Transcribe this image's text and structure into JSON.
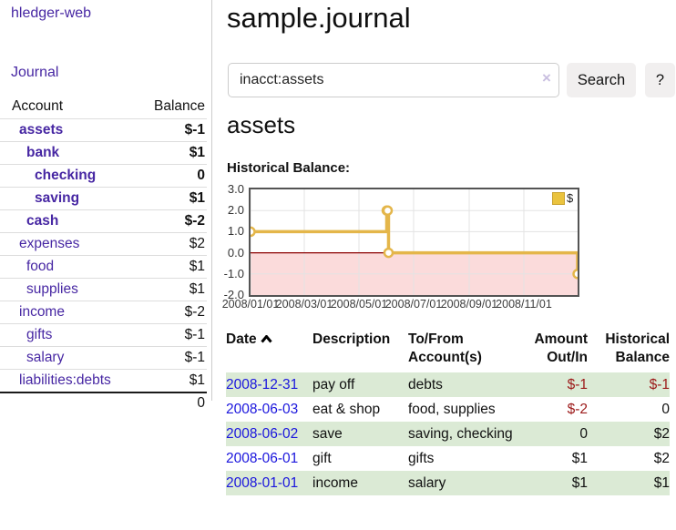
{
  "app": {
    "title": "hledger-web",
    "nav_journal": "Journal"
  },
  "sidebar": {
    "headers": {
      "account": "Account",
      "balance": "Balance"
    },
    "accounts": [
      {
        "name": "assets",
        "balance": "$-1"
      },
      {
        "name": "bank",
        "balance": "$1"
      },
      {
        "name": "checking",
        "balance": "0"
      },
      {
        "name": "saving",
        "balance": "$1"
      },
      {
        "name": "cash",
        "balance": "$-2"
      },
      {
        "name": "expenses",
        "balance": "$2"
      },
      {
        "name": "food",
        "balance": "$1"
      },
      {
        "name": "supplies",
        "balance": "$1"
      },
      {
        "name": "income",
        "balance": "$-2"
      },
      {
        "name": "gifts",
        "balance": "$-1"
      },
      {
        "name": "salary",
        "balance": "$-1"
      },
      {
        "name": "liabilities:debts",
        "balance": "$1"
      }
    ],
    "total": "0"
  },
  "header": {
    "title": "sample.journal"
  },
  "search": {
    "value": "inacct:assets",
    "clear_icon": "×",
    "button": "Search",
    "help_button": "?"
  },
  "account_page": {
    "title": "assets",
    "chart_label": "Historical Balance:"
  },
  "chart_data": {
    "type": "line",
    "subtype": "step",
    "title": "Historical Balance",
    "ylim": [
      -2,
      3
    ],
    "yticks": [
      {
        "label": "3.0",
        "value": 3
      },
      {
        "label": "2.0",
        "value": 2
      },
      {
        "label": "1.0",
        "value": 1
      },
      {
        "label": "0.0",
        "value": 0
      },
      {
        "label": "-1.0",
        "value": -1
      },
      {
        "label": "-2.0",
        "value": -2
      }
    ],
    "xticks": [
      {
        "label": "2008/01/01",
        "day": 0
      },
      {
        "label": "2008/03/01",
        "day": 60
      },
      {
        "label": "2008/05/01",
        "day": 121
      },
      {
        "label": "2008/07/01",
        "day": 182
      },
      {
        "label": "2008/09/01",
        "day": 244
      },
      {
        "label": "2008/11/01",
        "day": 305
      }
    ],
    "x_total_days": 365,
    "series": [
      {
        "name": "$",
        "color": "#e4b64a",
        "points": [
          {
            "date": "2008-01-01",
            "day": 0,
            "value": 1
          },
          {
            "date": "2008-06-01",
            "day": 152,
            "value": 2
          },
          {
            "date": "2008-06-02",
            "day": 153,
            "value": 2
          },
          {
            "date": "2008-06-03",
            "day": 154,
            "value": 0
          },
          {
            "date": "2008-12-31",
            "day": 365,
            "value": -1
          }
        ]
      }
    ],
    "legend": {
      "label": "$",
      "swatch_color": "#eac33e",
      "swatch_border": "#c9a22f",
      "position": "top-right"
    },
    "grid": true,
    "grid_color": "#e3e3e3",
    "negative_region_color": "#fbdbdb",
    "zero_line_color": "#8b0000"
  },
  "register": {
    "headers": {
      "date": "Date",
      "description": "Description",
      "accounts": "To/From Account(s)",
      "amount": "Amount Out/In",
      "balance": "Historical Balance"
    },
    "rows": [
      {
        "date": "2008-12-31",
        "description": "pay off",
        "accounts": "debts",
        "amount": "$-1",
        "balance": "$-1"
      },
      {
        "date": "2008-06-03",
        "description": "eat & shop",
        "accounts": "food, supplies",
        "amount": "$-2",
        "balance": "0"
      },
      {
        "date": "2008-06-02",
        "description": "save",
        "accounts": "saving, checking",
        "amount": "0",
        "balance": "$2"
      },
      {
        "date": "2008-06-01",
        "description": "gift",
        "accounts": "gifts",
        "amount": "$1",
        "balance": "$2"
      },
      {
        "date": "2008-01-01",
        "description": "income",
        "accounts": "salary",
        "amount": "$1",
        "balance": "$1"
      }
    ]
  }
}
